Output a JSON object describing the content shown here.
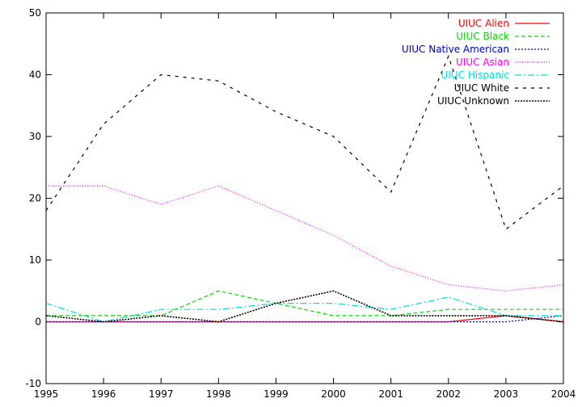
{
  "chart_data": {
    "type": "line",
    "title": "",
    "xlabel": "",
    "ylabel": "",
    "x": [
      1995,
      1996,
      1997,
      1998,
      1999,
      2000,
      2001,
      2002,
      2003,
      2004
    ],
    "x_tick_labels": [
      "1995",
      "1996",
      "1997",
      "1998",
      "1999",
      "2000",
      "2001",
      "2002",
      "2003",
      "2004"
    ],
    "xlim": [
      1995,
      2004
    ],
    "ylim": [
      -10,
      50
    ],
    "y_ticks": [
      -10,
      0,
      10,
      20,
      30,
      40,
      50
    ],
    "y_tick_labels": [
      "-10",
      "0",
      "10",
      "20",
      "30",
      "40",
      "50"
    ],
    "grid": false,
    "legend_position": "top-right",
    "series": [
      {
        "name": "UIUC Alien",
        "color": "#ff0000",
        "dash": "solid",
        "values": [
          0,
          0,
          0,
          0,
          0,
          0,
          0,
          0,
          1,
          0
        ]
      },
      {
        "name": "UIUC Black",
        "color": "#00dd00",
        "dash": "dashed",
        "values": [
          1,
          1,
          1,
          5,
          3,
          1,
          1,
          2,
          2,
          2
        ]
      },
      {
        "name": "UIUC Native American",
        "color": "#0000cc",
        "dash": "dotted",
        "values": [
          0,
          0,
          0,
          0,
          0,
          0,
          0,
          0,
          0,
          1
        ]
      },
      {
        "name": "UIUC Asian",
        "color": "#ff00ff",
        "dash": "dotted-fine",
        "values": [
          22,
          22,
          19,
          22,
          18,
          14,
          9,
          6,
          5,
          6
        ]
      },
      {
        "name": "UIUC Hispanic",
        "color": "#00dddd",
        "dash": "dash-dot",
        "values": [
          3,
          0,
          2,
          2,
          3,
          3,
          2,
          4,
          1,
          1
        ]
      },
      {
        "name": "UIUC White",
        "color": "#000000",
        "dash": "sparse-dash",
        "values": [
          18,
          32,
          40,
          39,
          34,
          30,
          21,
          43,
          15,
          22
        ]
      },
      {
        "name": "UIUC Unknown",
        "color": "#000000",
        "dash": "dense-dot",
        "values": [
          1,
          0,
          1,
          0,
          3,
          5,
          1,
          1,
          1,
          0
        ]
      }
    ]
  }
}
